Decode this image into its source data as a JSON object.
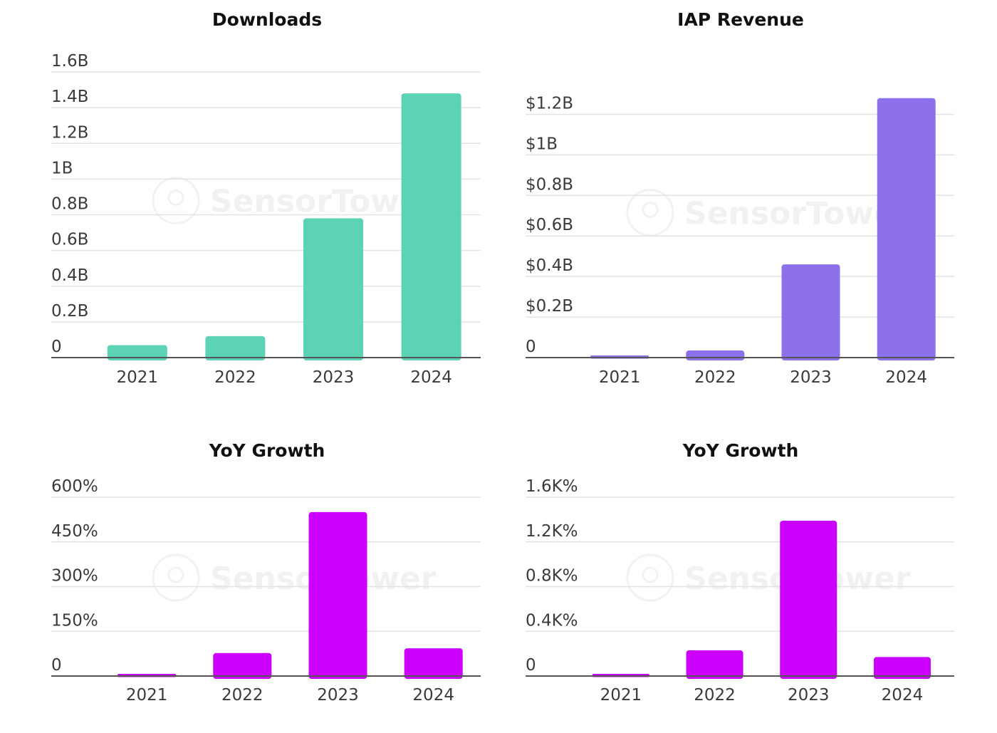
{
  "watermark": "SensorTower",
  "chart_data": [
    {
      "type": "bar",
      "title": "Downloads",
      "categories": [
        "2021",
        "2022",
        "2023",
        "2024"
      ],
      "values": [
        0.07,
        0.12,
        0.78,
        1.48
      ],
      "ylim": [
        0,
        1.6
      ],
      "yticks": [
        0,
        0.2,
        0.4,
        0.6,
        0.8,
        1,
        1.2,
        1.4,
        1.6
      ],
      "ytick_labels": [
        "0",
        "0.2B",
        "0.4B",
        "0.6B",
        "0.8B",
        "1B",
        "1.2B",
        "1.4B",
        "1.6B"
      ],
      "color": "#5dd3b6",
      "grid": true
    },
    {
      "type": "bar",
      "title": "IAP Revenue",
      "categories": [
        "2021",
        "2022",
        "2023",
        "2024"
      ],
      "values": [
        0.01,
        0.035,
        0.46,
        1.28
      ],
      "ylim": [
        0,
        1.3
      ],
      "yticks": [
        0,
        0.2,
        0.4,
        0.6,
        0.8,
        1,
        1.2
      ],
      "ytick_labels": [
        "0",
        "$0.2B",
        "$0.4B",
        "$0.6B",
        "$0.8B",
        "$1B",
        "$1.2B"
      ],
      "color": "#8d70ec",
      "grid": true
    },
    {
      "type": "bar",
      "title": "YoY Growth",
      "categories": [
        "2021",
        "2022",
        "2023",
        "2024"
      ],
      "values": [
        3,
        77,
        550,
        93
      ],
      "ylim": [
        0,
        600
      ],
      "yticks": [
        0,
        150,
        300,
        450,
        600
      ],
      "ytick_labels": [
        "0",
        "150%",
        "300%",
        "450%",
        "600%"
      ],
      "color": "#cc00ff",
      "grid": true
    },
    {
      "type": "bar",
      "title": "YoY Growth",
      "categories": [
        "2021",
        "2022",
        "2023",
        "2024"
      ],
      "values": [
        8,
        230,
        1390,
        170
      ],
      "ylim": [
        0,
        1600
      ],
      "yticks": [
        0,
        400,
        800,
        1200,
        1600
      ],
      "ytick_labels": [
        "0",
        "0.4K%",
        "0.8K%",
        "1.2K%",
        "1.6K%"
      ],
      "color": "#cc00ff",
      "grid": true
    }
  ]
}
